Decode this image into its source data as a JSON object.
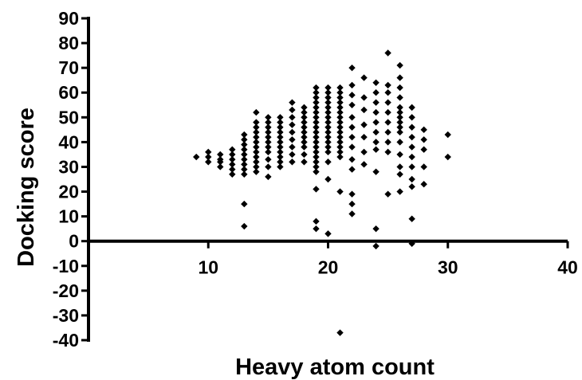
{
  "chart_data": {
    "type": "scatter",
    "title": "",
    "xlabel": "Heavy atom count",
    "ylabel": "Docking score",
    "xlim": [
      0,
      40
    ],
    "ylim": [
      -40,
      90
    ],
    "x_ticks": [
      10,
      20,
      30,
      40
    ],
    "y_ticks": [
      90,
      80,
      70,
      60,
      50,
      40,
      30,
      20,
      10,
      0,
      -10,
      -20,
      -30,
      -40
    ],
    "marker": "diamond",
    "marker_color": "#000000",
    "grid": false,
    "legend": "none",
    "series": [
      {
        "points": [
          [
            9,
            34
          ],
          [
            10,
            32
          ],
          [
            10,
            34
          ],
          [
            10,
            36
          ],
          [
            11,
            30
          ],
          [
            11,
            32
          ],
          [
            11,
            33
          ],
          [
            11,
            35
          ],
          [
            12,
            27
          ],
          [
            12,
            29
          ],
          [
            12,
            31
          ],
          [
            12,
            33
          ],
          [
            12,
            35
          ],
          [
            12,
            37
          ],
          [
            13,
            6
          ],
          [
            13,
            15
          ],
          [
            13,
            27
          ],
          [
            13,
            29
          ],
          [
            13,
            31
          ],
          [
            13,
            33
          ],
          [
            13,
            35
          ],
          [
            13,
            37
          ],
          [
            13,
            39
          ],
          [
            13,
            41
          ],
          [
            13,
            43
          ],
          [
            14,
            28
          ],
          [
            14,
            30
          ],
          [
            14,
            32
          ],
          [
            14,
            34
          ],
          [
            14,
            36
          ],
          [
            14,
            38
          ],
          [
            14,
            40
          ],
          [
            14,
            42
          ],
          [
            14,
            44
          ],
          [
            14,
            46
          ],
          [
            14,
            48
          ],
          [
            14,
            52
          ],
          [
            15,
            26
          ],
          [
            15,
            30
          ],
          [
            15,
            33
          ],
          [
            15,
            36
          ],
          [
            15,
            38
          ],
          [
            15,
            40
          ],
          [
            15,
            42
          ],
          [
            15,
            44
          ],
          [
            15,
            46
          ],
          [
            15,
            48
          ],
          [
            15,
            50
          ],
          [
            16,
            30
          ],
          [
            16,
            32
          ],
          [
            16,
            34
          ],
          [
            16,
            36
          ],
          [
            16,
            38
          ],
          [
            16,
            40
          ],
          [
            16,
            42
          ],
          [
            16,
            44
          ],
          [
            16,
            46
          ],
          [
            16,
            48
          ],
          [
            16,
            50
          ],
          [
            17,
            32
          ],
          [
            17,
            35
          ],
          [
            17,
            38
          ],
          [
            17,
            41
          ],
          [
            17,
            44
          ],
          [
            17,
            47
          ],
          [
            17,
            50
          ],
          [
            17,
            53
          ],
          [
            17,
            56
          ],
          [
            18,
            32
          ],
          [
            18,
            35
          ],
          [
            18,
            38
          ],
          [
            18,
            40
          ],
          [
            18,
            42
          ],
          [
            18,
            44
          ],
          [
            18,
            46
          ],
          [
            18,
            48
          ],
          [
            18,
            50
          ],
          [
            18,
            52
          ],
          [
            18,
            54
          ],
          [
            19,
            5
          ],
          [
            19,
            8
          ],
          [
            19,
            21
          ],
          [
            19,
            28
          ],
          [
            19,
            30
          ],
          [
            19,
            32
          ],
          [
            19,
            34
          ],
          [
            19,
            36
          ],
          [
            19,
            38
          ],
          [
            19,
            40
          ],
          [
            19,
            42
          ],
          [
            19,
            44
          ],
          [
            19,
            46
          ],
          [
            19,
            48
          ],
          [
            19,
            50
          ],
          [
            19,
            52
          ],
          [
            19,
            54
          ],
          [
            19,
            56
          ],
          [
            19,
            58
          ],
          [
            19,
            60
          ],
          [
            19,
            62
          ],
          [
            20,
            3
          ],
          [
            20,
            25
          ],
          [
            20,
            32
          ],
          [
            20,
            36
          ],
          [
            20,
            38
          ],
          [
            20,
            40
          ],
          [
            20,
            42
          ],
          [
            20,
            44
          ],
          [
            20,
            46
          ],
          [
            20,
            48
          ],
          [
            20,
            50
          ],
          [
            20,
            52
          ],
          [
            20,
            54
          ],
          [
            20,
            56
          ],
          [
            20,
            58
          ],
          [
            20,
            60
          ],
          [
            20,
            62
          ],
          [
            21,
            -37
          ],
          [
            21,
            20
          ],
          [
            21,
            34
          ],
          [
            21,
            36
          ],
          [
            21,
            38
          ],
          [
            21,
            40
          ],
          [
            21,
            42
          ],
          [
            21,
            44
          ],
          [
            21,
            46
          ],
          [
            21,
            48
          ],
          [
            21,
            50
          ],
          [
            21,
            52
          ],
          [
            21,
            54
          ],
          [
            21,
            56
          ],
          [
            21,
            58
          ],
          [
            21,
            60
          ],
          [
            21,
            62
          ],
          [
            22,
            11
          ],
          [
            22,
            15
          ],
          [
            22,
            19
          ],
          [
            22,
            29
          ],
          [
            22,
            33
          ],
          [
            22,
            38
          ],
          [
            22,
            42
          ],
          [
            22,
            46
          ],
          [
            22,
            50
          ],
          [
            22,
            55
          ],
          [
            22,
            59
          ],
          [
            22,
            63
          ],
          [
            22,
            70
          ],
          [
            23,
            31
          ],
          [
            23,
            36
          ],
          [
            23,
            42
          ],
          [
            23,
            47
          ],
          [
            23,
            53
          ],
          [
            23,
            58
          ],
          [
            23,
            66
          ],
          [
            24,
            -2
          ],
          [
            24,
            5
          ],
          [
            24,
            28
          ],
          [
            24,
            37
          ],
          [
            24,
            40
          ],
          [
            24,
            44
          ],
          [
            24,
            48
          ],
          [
            24,
            52
          ],
          [
            24,
            56
          ],
          [
            24,
            60
          ],
          [
            24,
            64
          ],
          [
            25,
            19
          ],
          [
            25,
            36
          ],
          [
            25,
            40
          ],
          [
            25,
            44
          ],
          [
            25,
            48
          ],
          [
            25,
            52
          ],
          [
            25,
            56
          ],
          [
            25,
            60
          ],
          [
            25,
            63
          ],
          [
            25,
            76
          ],
          [
            26,
            20
          ],
          [
            26,
            27
          ],
          [
            26,
            30
          ],
          [
            26,
            35
          ],
          [
            26,
            40
          ],
          [
            26,
            44
          ],
          [
            26,
            46
          ],
          [
            26,
            48
          ],
          [
            26,
            50
          ],
          [
            26,
            52
          ],
          [
            26,
            54
          ],
          [
            26,
            58
          ],
          [
            26,
            62
          ],
          [
            26,
            66
          ],
          [
            26,
            71
          ],
          [
            27,
            -1
          ],
          [
            27,
            9
          ],
          [
            27,
            22
          ],
          [
            27,
            25
          ],
          [
            27,
            30
          ],
          [
            27,
            34
          ],
          [
            27,
            38
          ],
          [
            27,
            42
          ],
          [
            27,
            46
          ],
          [
            27,
            50
          ],
          [
            27,
            54
          ],
          [
            28,
            23
          ],
          [
            28,
            30
          ],
          [
            28,
            37
          ],
          [
            28,
            41
          ],
          [
            28,
            45
          ],
          [
            30,
            34
          ],
          [
            30,
            43
          ]
        ]
      }
    ]
  }
}
